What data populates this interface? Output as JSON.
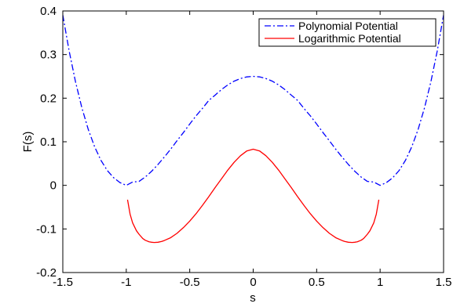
{
  "chart_data": {
    "type": "line",
    "title": "",
    "xlabel": "s",
    "ylabel": "F(s)",
    "xlim": [
      -1.5,
      1.5
    ],
    "ylim": [
      -0.2,
      0.4
    ],
    "grid": false,
    "legend_position": "top-right",
    "x_ticks": [
      -1.5,
      -1,
      -0.5,
      0,
      0.5,
      1,
      1.5
    ],
    "y_ticks": [
      -0.2,
      -0.1,
      0,
      0.1,
      0.2,
      0.3,
      0.4
    ],
    "x_tick_labels": [
      "-1.5",
      "-1",
      "-0.5",
      "0",
      "0.5",
      "1",
      "1.5"
    ],
    "y_tick_labels": [
      "-0.2",
      "-0.1",
      "0",
      "0.1",
      "0.2",
      "0.3",
      "0.4"
    ],
    "series": [
      {
        "name": "Polynomial Potential",
        "color": "#0000ff",
        "line_style": "dash-dot",
        "x": [
          -1.5,
          -1.45,
          -1.4,
          -1.35,
          -1.3,
          -1.25,
          -1.2,
          -1.15,
          -1.1,
          -1.05,
          -1.0,
          -0.95,
          -0.9,
          -0.85,
          -0.8,
          -0.75,
          -0.7,
          -0.65,
          -0.6,
          -0.55,
          -0.5,
          -0.45,
          -0.4,
          -0.35,
          -0.3,
          -0.25,
          -0.2,
          -0.15,
          -0.1,
          -0.05,
          0.0,
          0.05,
          0.1,
          0.15,
          0.2,
          0.25,
          0.3,
          0.35,
          0.4,
          0.45,
          0.5,
          0.55,
          0.6,
          0.65,
          0.7,
          0.75,
          0.8,
          0.85,
          0.9,
          0.95,
          1.0,
          1.05,
          1.1,
          1.15,
          1.2,
          1.25,
          1.3,
          1.35,
          1.4,
          1.45,
          1.5
        ],
        "y": [
          0.3906,
          0.3081,
          0.2376,
          0.1781,
          0.1288,
          0.0889,
          0.0576,
          0.0342,
          0.0176,
          0.0064,
          0.0,
          0.0076,
          0.009,
          0.0192,
          0.0324,
          0.0479,
          0.065,
          0.083,
          0.1024,
          0.121,
          0.1406,
          0.1595,
          0.1764,
          0.1948,
          0.207,
          0.2197,
          0.2304,
          0.239,
          0.245,
          0.2488,
          0.25,
          0.2488,
          0.245,
          0.239,
          0.2304,
          0.2197,
          0.207,
          0.1948,
          0.1764,
          0.1595,
          0.1406,
          0.121,
          0.1024,
          0.083,
          0.065,
          0.0479,
          0.0324,
          0.0192,
          0.009,
          0.0076,
          0.0,
          0.0064,
          0.0176,
          0.0342,
          0.0576,
          0.0889,
          0.1288,
          0.1781,
          0.2376,
          0.3081,
          0.3906
        ]
      },
      {
        "name": "Logarithmic Potential",
        "color": "#ff0000",
        "line_style": "solid",
        "x": [
          -0.99,
          -0.97,
          -0.95,
          -0.92,
          -0.9,
          -0.87,
          -0.85,
          -0.82,
          -0.8,
          -0.78,
          -0.75,
          -0.72,
          -0.7,
          -0.65,
          -0.6,
          -0.55,
          -0.5,
          -0.45,
          -0.4,
          -0.35,
          -0.3,
          -0.25,
          -0.2,
          -0.15,
          -0.1,
          -0.05,
          0.0,
          0.05,
          0.1,
          0.15,
          0.2,
          0.25,
          0.3,
          0.35,
          0.4,
          0.45,
          0.5,
          0.55,
          0.6,
          0.65,
          0.7,
          0.72,
          0.75,
          0.78,
          0.8,
          0.82,
          0.85,
          0.87,
          0.9,
          0.92,
          0.95,
          0.97,
          0.99
        ],
        "y": [
          -0.033,
          -0.066,
          -0.086,
          -0.104,
          -0.112,
          -0.122,
          -0.126,
          -0.1295,
          -0.1305,
          -0.131,
          -0.1305,
          -0.1285,
          -0.1265,
          -0.12,
          -0.11,
          -0.097,
          -0.082,
          -0.065,
          -0.046,
          -0.026,
          -0.005,
          0.015,
          0.035,
          0.053,
          0.068,
          0.079,
          0.083,
          0.079,
          0.068,
          0.053,
          0.035,
          0.015,
          -0.005,
          -0.026,
          -0.046,
          -0.065,
          -0.082,
          -0.097,
          -0.11,
          -0.12,
          -0.1265,
          -0.1285,
          -0.1305,
          -0.131,
          -0.1305,
          -0.1295,
          -0.126,
          -0.122,
          -0.112,
          -0.104,
          -0.086,
          -0.066,
          -0.033
        ]
      }
    ]
  }
}
